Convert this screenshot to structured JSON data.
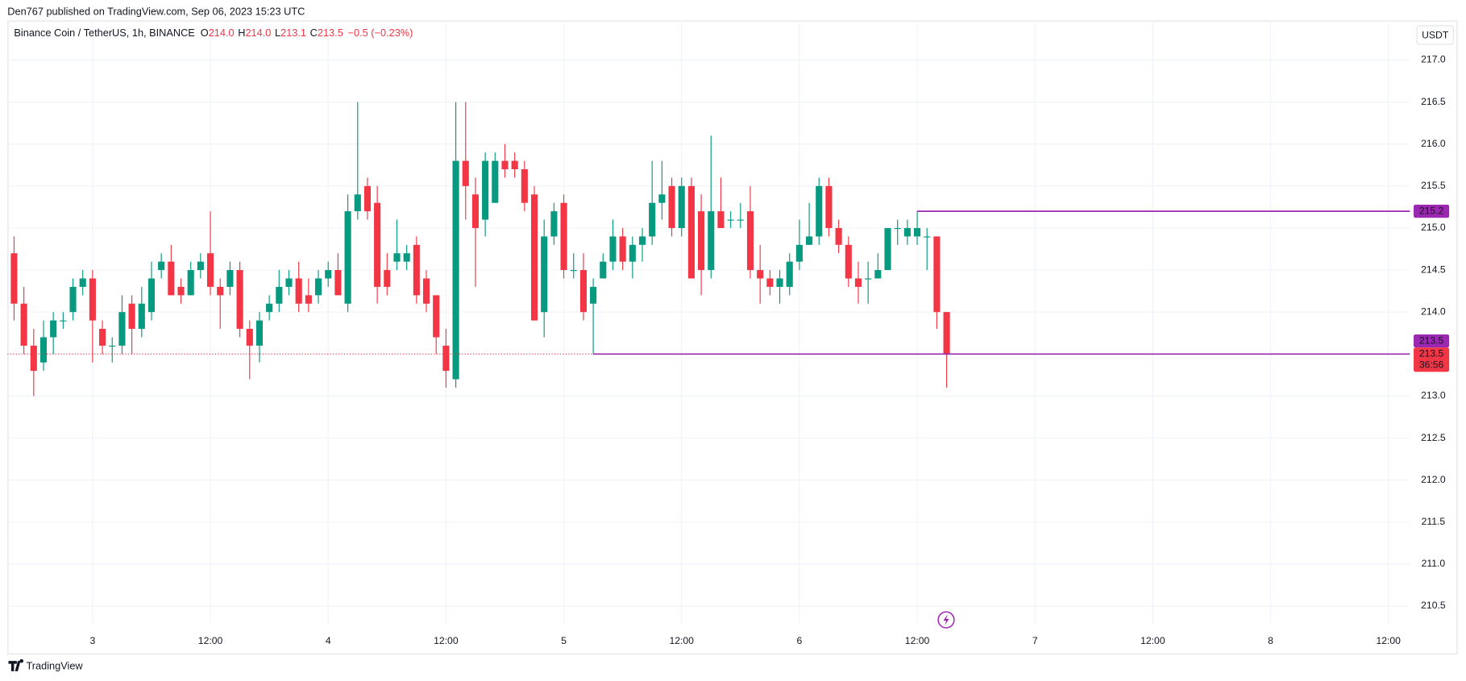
{
  "attribution": {
    "publisher": "Den767 published on TradingView.com, Sep 06, 2023 15:23 UTC",
    "brand": "TradingView"
  },
  "chart_data": {
    "type": "candlestick",
    "title": "Binance Coin / TetherUS, 1h, BINANCE",
    "ohlc_legend": [
      {
        "key": "O",
        "value": "214.0"
      },
      {
        "key": "H",
        "value": "214.0"
      },
      {
        "key": "L",
        "value": "213.1"
      },
      {
        "key": "C",
        "value": "213.5"
      }
    ],
    "change": "−0.5 (−0.23%)",
    "currency": "USDT",
    "countdown": "36:56",
    "up_color": "#089981",
    "down_color": "#f23645",
    "line_color": "#9c27b0",
    "grid": true,
    "price_line": true,
    "x": [
      -8,
      -7,
      -6,
      -5,
      -4,
      -3,
      -2,
      -1,
      0,
      1,
      2,
      3,
      4,
      5,
      6,
      7,
      8,
      9,
      10,
      11,
      12,
      13,
      14,
      15,
      16,
      17,
      18,
      19,
      20,
      21,
      22,
      23,
      24,
      25,
      26,
      27,
      28,
      29,
      30,
      31,
      32,
      33,
      34,
      35,
      36,
      37,
      38,
      39,
      40,
      41,
      42,
      43,
      44,
      45,
      46,
      47,
      48,
      49,
      50,
      51,
      52,
      53,
      54,
      55,
      56,
      57,
      58,
      59,
      60,
      61,
      62,
      63,
      64,
      65,
      66,
      67,
      68,
      69,
      70,
      71,
      72,
      73,
      74,
      75,
      76,
      77,
      78,
      79,
      80,
      81,
      82,
      83,
      84,
      85,
      86,
      87
    ],
    "open": [
      214.7,
      214.1,
      213.6,
      213.4,
      213.7,
      213.9,
      214.0,
      214.3,
      214.4,
      213.8,
      213.6,
      213.6,
      214.1,
      213.8,
      214.0,
      214.5,
      214.6,
      214.3,
      214.2,
      214.5,
      214.7,
      214.3,
      214.3,
      214.5,
      213.8,
      213.6,
      214.0,
      214.1,
      214.3,
      214.4,
      214.2,
      214.2,
      214.4,
      214.5,
      214.1,
      215.2,
      215.5,
      215.3,
      214.5,
      214.6,
      214.6,
      214.8,
      214.4,
      214.2,
      213.6,
      213.2,
      215.8,
      215.4,
      215.1,
      215.3,
      215.8,
      215.8,
      215.7,
      215.4,
      214.0,
      214.9,
      215.3,
      214.5,
      214.5,
      214.1,
      214.4,
      214.6,
      214.9,
      214.6,
      214.8,
      214.9,
      215.3,
      215.5,
      215.0,
      215.5,
      215.2,
      214.5,
      215.2,
      215.1,
      215.1,
      215.2,
      214.5,
      214.4,
      214.3,
      214.3,
      214.6,
      214.8,
      214.9,
      215.5,
      215.0,
      214.8,
      214.4,
      214.4,
      214.4,
      214.5,
      215.0,
      214.9,
      214.9,
      214.9,
      214.9,
      214.0
    ],
    "high": [
      214.9,
      214.3,
      213.8,
      213.9,
      214.0,
      214.0,
      214.4,
      214.5,
      214.5,
      213.9,
      213.7,
      214.2,
      214.2,
      214.3,
      214.6,
      214.7,
      214.8,
      214.4,
      214.6,
      214.7,
      215.2,
      214.4,
      214.6,
      214.6,
      213.9,
      214.0,
      214.2,
      214.5,
      214.5,
      214.6,
      214.4,
      214.5,
      214.6,
      214.7,
      215.4,
      216.5,
      215.6,
      215.5,
      214.7,
      215.1,
      214.8,
      214.9,
      214.5,
      214.2,
      213.8,
      216.5,
      216.5,
      215.6,
      215.9,
      215.9,
      216.0,
      215.9,
      215.8,
      215.5,
      215.1,
      215.3,
      215.4,
      214.7,
      214.7,
      214.4,
      214.7,
      215.1,
      215.0,
      214.9,
      215.0,
      215.8,
      215.8,
      215.6,
      215.6,
      215.6,
      215.4,
      216.1,
      215.6,
      215.2,
      215.3,
      215.5,
      214.8,
      214.5,
      214.5,
      214.7,
      215.1,
      215.3,
      215.6,
      215.6,
      215.1,
      214.9,
      214.6,
      214.6,
      214.7,
      215.0,
      215.1,
      215.1,
      215.2,
      215.0,
      214.9,
      214.0
    ],
    "low": [
      213.9,
      213.5,
      213.0,
      213.3,
      213.5,
      213.8,
      213.9,
      214.2,
      213.4,
      213.5,
      213.4,
      213.5,
      213.5,
      213.7,
      213.9,
      214.4,
      214.2,
      214.1,
      214.2,
      214.4,
      214.2,
      213.8,
      214.2,
      213.7,
      213.2,
      213.4,
      213.9,
      214.0,
      214.2,
      214.0,
      214.0,
      214.1,
      214.3,
      214.2,
      214.0,
      215.1,
      215.1,
      214.1,
      214.2,
      214.5,
      214.5,
      214.1,
      214.0,
      213.5,
      213.1,
      213.1,
      215.1,
      214.3,
      214.9,
      215.3,
      215.6,
      215.6,
      215.2,
      213.9,
      213.7,
      214.8,
      214.4,
      214.4,
      213.9,
      213.5,
      214.4,
      214.5,
      214.5,
      214.4,
      214.6,
      214.8,
      215.1,
      214.9,
      214.9,
      214.4,
      214.2,
      214.4,
      215.0,
      215.0,
      215.0,
      214.4,
      214.1,
      214.2,
      214.1,
      214.2,
      214.5,
      214.8,
      214.8,
      214.9,
      214.7,
      214.3,
      214.1,
      214.1,
      214.4,
      214.5,
      214.8,
      214.8,
      214.8,
      214.5,
      213.8,
      213.1
    ],
    "close": [
      214.1,
      213.6,
      213.3,
      213.7,
      213.9,
      213.9,
      214.3,
      214.4,
      213.9,
      213.6,
      213.6,
      214.0,
      213.8,
      214.1,
      214.4,
      214.6,
      214.2,
      214.2,
      214.5,
      214.6,
      214.3,
      214.2,
      214.5,
      213.8,
      213.6,
      213.9,
      214.1,
      214.3,
      214.4,
      214.1,
      214.1,
      214.4,
      214.5,
      214.2,
      215.2,
      215.4,
      215.2,
      214.3,
      214.3,
      214.7,
      214.7,
      214.2,
      214.1,
      213.7,
      213.3,
      215.8,
      215.5,
      215.0,
      215.8,
      215.8,
      215.7,
      215.7,
      215.3,
      213.9,
      214.9,
      215.2,
      214.5,
      214.5,
      214.0,
      214.3,
      214.6,
      214.9,
      214.6,
      214.8,
      214.9,
      215.3,
      215.4,
      215.0,
      215.5,
      214.4,
      214.5,
      215.2,
      215.0,
      215.1,
      215.1,
      214.5,
      214.4,
      214.3,
      214.4,
      214.6,
      214.8,
      214.9,
      215.5,
      215.0,
      214.8,
      214.4,
      214.3,
      214.4,
      214.5,
      215.0,
      215.0,
      215.0,
      215.0,
      214.9,
      214.0,
      213.5
    ],
    "lines": [
      {
        "value": 215.2,
        "x_start": 84
      },
      {
        "value": 213.5,
        "x_start": 51
      }
    ],
    "xlim": [
      -8.67,
      134.19
    ],
    "xticks": [
      {
        "value": 0,
        "label": "3"
      },
      {
        "value": 12,
        "label": "12:00"
      },
      {
        "value": 24,
        "label": "4"
      },
      {
        "value": 36,
        "label": "12:00"
      },
      {
        "value": 48,
        "label": "5"
      },
      {
        "value": 60,
        "label": "12:00"
      },
      {
        "value": 72,
        "label": "6"
      },
      {
        "value": 84,
        "label": "12:00"
      },
      {
        "value": 96,
        "label": "7"
      },
      {
        "value": 108,
        "label": "12:00"
      },
      {
        "value": 120,
        "label": "8"
      },
      {
        "value": 132,
        "label": "12:00"
      }
    ],
    "ylim": [
      210.28,
      217.47
    ],
    "yticks": [
      210.5,
      {
        "value": 211,
        "label": "211.0"
      },
      211.5,
      {
        "value": 212,
        "label": "212.0"
      },
      212.5,
      {
        "value": 213,
        "label": "213.0"
      },
      213.5,
      {
        "value": 214,
        "label": "214.0"
      },
      214.5,
      {
        "value": 215,
        "label": "215.0"
      },
      215.5,
      {
        "value": 216,
        "label": "216.0"
      },
      216.5,
      {
        "value": 217,
        "label": "217.0"
      }
    ]
  }
}
